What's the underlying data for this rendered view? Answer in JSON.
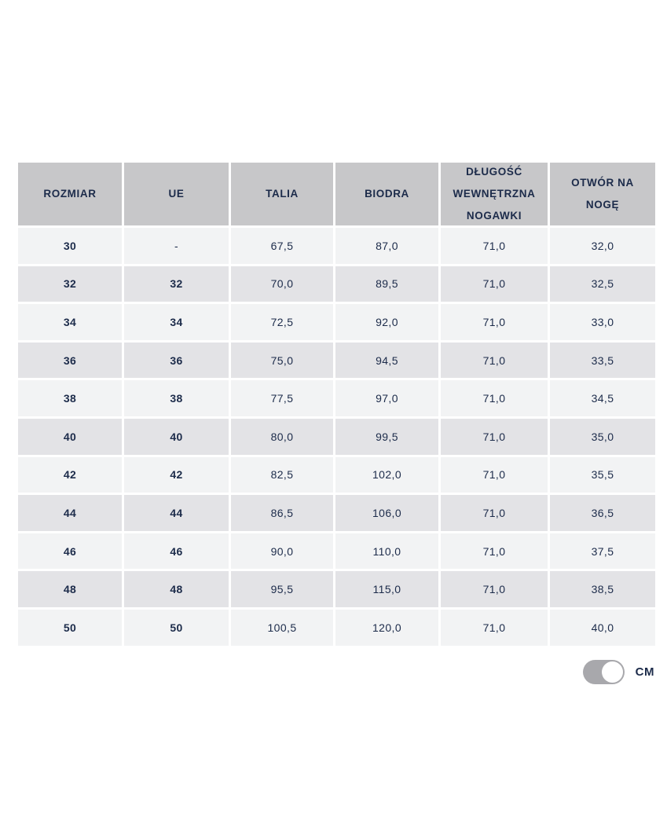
{
  "table": {
    "columns": [
      {
        "label": "ROZMIAR"
      },
      {
        "label": "UE"
      },
      {
        "label": "TALIA"
      },
      {
        "label": "BIODRA"
      },
      {
        "label": "DŁUGOŚĆ WEWNĘTRZNA NOGAWKI"
      },
      {
        "label": "OTWÓR NA NOGĘ"
      }
    ],
    "rows": [
      [
        "30",
        "-",
        "67,5",
        "87,0",
        "71,0",
        "32,0"
      ],
      [
        "32",
        "32",
        "70,0",
        "89,5",
        "71,0",
        "32,5"
      ],
      [
        "34",
        "34",
        "72,5",
        "92,0",
        "71,0",
        "33,0"
      ],
      [
        "36",
        "36",
        "75,0",
        "94,5",
        "71,0",
        "33,5"
      ],
      [
        "38",
        "38",
        "77,5",
        "97,0",
        "71,0",
        "34,5"
      ],
      [
        "40",
        "40",
        "80,0",
        "99,5",
        "71,0",
        "35,0"
      ],
      [
        "42",
        "42",
        "82,5",
        "102,0",
        "71,0",
        "35,5"
      ],
      [
        "44",
        "44",
        "86,5",
        "106,0",
        "71,0",
        "36,5"
      ],
      [
        "46",
        "46",
        "90,0",
        "110,0",
        "71,0",
        "37,5"
      ],
      [
        "48",
        "48",
        "95,5",
        "115,0",
        "71,0",
        "38,5"
      ],
      [
        "50",
        "50",
        "100,5",
        "120,0",
        "71,0",
        "40,0"
      ]
    ]
  },
  "unit_toggle": {
    "label": "CM",
    "state": "on"
  },
  "colors": {
    "header_bg": "#c7c7c9",
    "row_bg": "#f2f3f4",
    "row_alt_bg": "#e3e3e6",
    "text": "#1c2b4a",
    "toggle_bg": "#a8a8ac",
    "toggle_knob": "#ffffff"
  }
}
